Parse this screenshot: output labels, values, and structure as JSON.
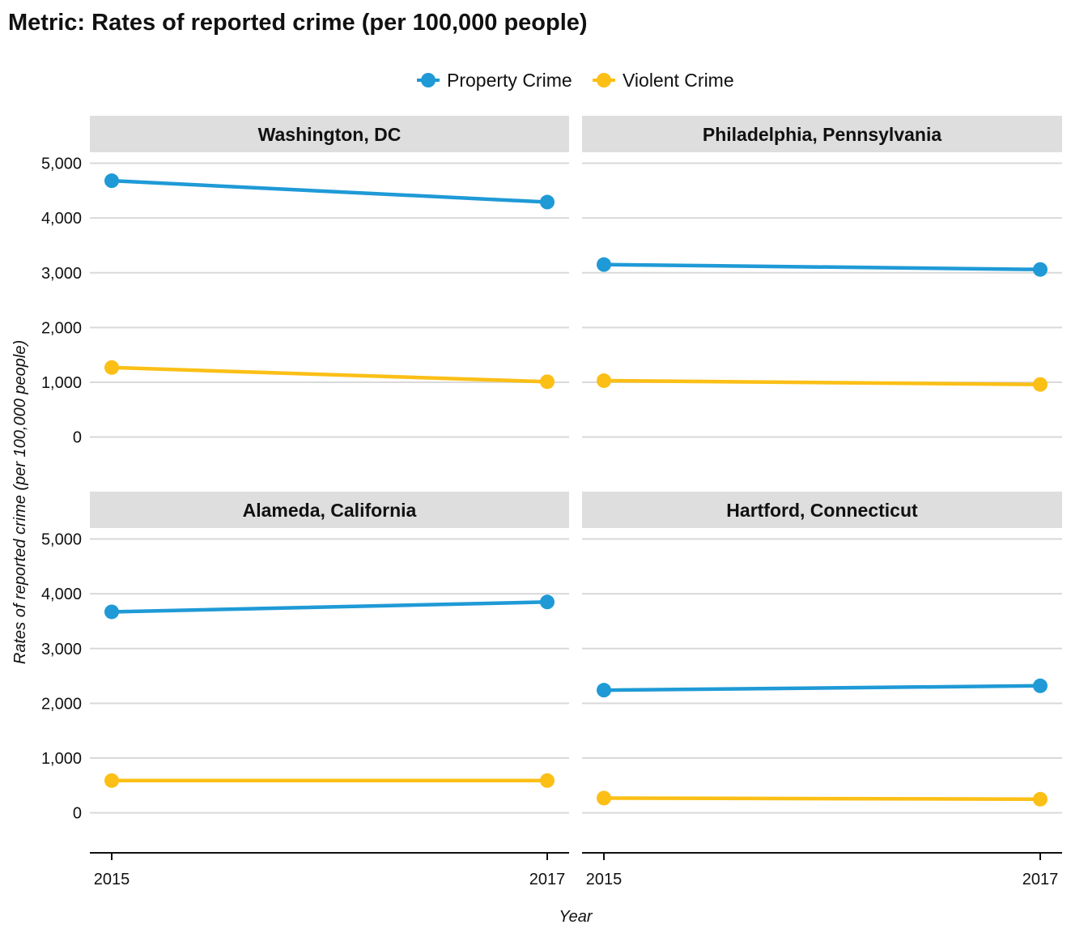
{
  "title": "Metric: Rates of reported crime (per 100,000 people)",
  "colors": {
    "property": "#1f9ad6",
    "violent": "#fbbf16",
    "grid": "#d9d9d9",
    "strip": "#dedede"
  },
  "chart_data": {
    "type": "line",
    "title": "Metric: Rates of reported crime (per 100,000 people)",
    "xlabel": "Year",
    "ylabel": "Rates of reported crime (per 100,000 people)",
    "x": [
      2015,
      2017
    ],
    "x_tick_labels": [
      "2015",
      "2017"
    ],
    "ylim": [
      -700,
      5200
    ],
    "y_ticks": [
      0,
      1000,
      2000,
      3000,
      4000,
      5000
    ],
    "y_tick_labels": [
      "0",
      "1,000",
      "2,000",
      "3,000",
      "4,000",
      "5,000"
    ],
    "legend": {
      "placement": "top",
      "entries": [
        "Property Crime",
        "Violent Crime"
      ]
    },
    "grid": true,
    "facets": [
      {
        "label": "Washington, DC",
        "series": [
          {
            "name": "Property Crime",
            "values": [
              4680,
              4290
            ]
          },
          {
            "name": "Violent Crime",
            "values": [
              1270,
              1010
            ]
          }
        ]
      },
      {
        "label": "Philadelphia, Pennsylvania",
        "series": [
          {
            "name": "Property Crime",
            "values": [
              3150,
              3060
            ]
          },
          {
            "name": "Violent Crime",
            "values": [
              1030,
              960
            ]
          }
        ]
      },
      {
        "label": "Alameda, California",
        "series": [
          {
            "name": "Property Crime",
            "values": [
              3670,
              3850
            ]
          },
          {
            "name": "Violent Crime",
            "values": [
              590,
              590
            ]
          }
        ]
      },
      {
        "label": "Hartford, Connecticut",
        "series": [
          {
            "name": "Property Crime",
            "values": [
              2240,
              2320
            ]
          },
          {
            "name": "Violent Crime",
            "values": [
              270,
              250
            ]
          }
        ]
      }
    ]
  }
}
